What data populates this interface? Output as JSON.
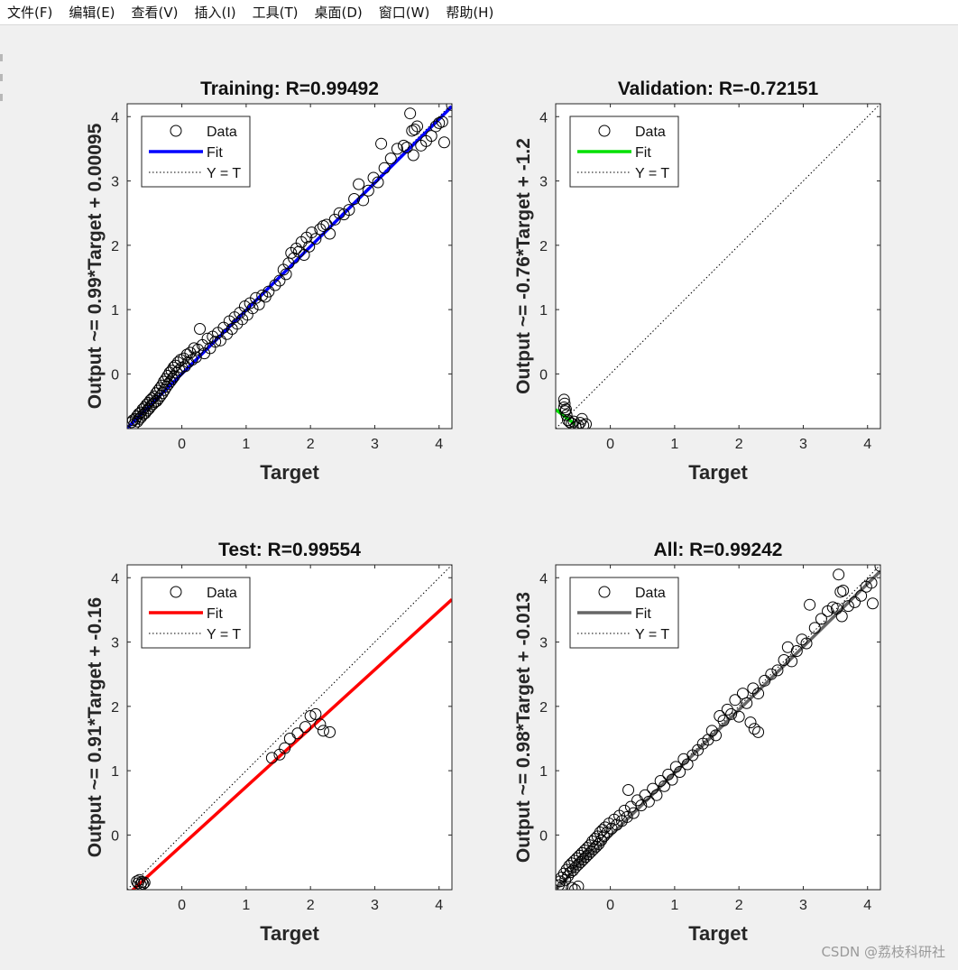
{
  "menu": {
    "items": [
      "文件(F)",
      "编辑(E)",
      "查看(V)",
      "插入(I)",
      "工具(T)",
      "桌面(D)",
      "窗口(W)",
      "帮助(H)"
    ]
  },
  "watermark": "CSDN @荔枝科研社",
  "colors": {
    "training_fit": "#0000ff",
    "validation_fit": "#00e000",
    "test_fit": "#ff0000",
    "all_fit": "#666666",
    "marker": "#000000",
    "identity": "#000000"
  },
  "chart_data": [
    {
      "id": "training",
      "type": "scatter",
      "title": "Training: R=0.99492",
      "xlabel": "Target",
      "ylabel": "Output ~= 0.99*Target + 0.00095",
      "xlim": [
        -0.85,
        4.2
      ],
      "ylim": [
        -0.85,
        4.2
      ],
      "xticks": [
        0,
        1,
        2,
        3,
        4
      ],
      "yticks": [
        0,
        1,
        2,
        3,
        4
      ],
      "legend": {
        "position": "top-left",
        "entries": [
          "Data",
          "Fit",
          "Y = T"
        ]
      },
      "fit": {
        "slope": 0.99,
        "intercept": 0.00095,
        "color": "#0000ff"
      },
      "points": [
        [
          -0.78,
          -0.75
        ],
        [
          -0.76,
          -0.72
        ],
        [
          -0.74,
          -0.78
        ],
        [
          -0.72,
          -0.7
        ],
        [
          -0.7,
          -0.66
        ],
        [
          -0.69,
          -0.74
        ],
        [
          -0.67,
          -0.62
        ],
        [
          -0.66,
          -0.7
        ],
        [
          -0.64,
          -0.6
        ],
        [
          -0.63,
          -0.67
        ],
        [
          -0.61,
          -0.55
        ],
        [
          -0.6,
          -0.63
        ],
        [
          -0.58,
          -0.52
        ],
        [
          -0.57,
          -0.61
        ],
        [
          -0.55,
          -0.48
        ],
        [
          -0.54,
          -0.57
        ],
        [
          -0.52,
          -0.45
        ],
        [
          -0.51,
          -0.54
        ],
        [
          -0.49,
          -0.41
        ],
        [
          -0.48,
          -0.5
        ],
        [
          -0.46,
          -0.38
        ],
        [
          -0.45,
          -0.47
        ],
        [
          -0.43,
          -0.35
        ],
        [
          -0.42,
          -0.44
        ],
        [
          -0.4,
          -0.3
        ],
        [
          -0.39,
          -0.42
        ],
        [
          -0.37,
          -0.26
        ],
        [
          -0.36,
          -0.38
        ],
        [
          -0.34,
          -0.22
        ],
        [
          -0.33,
          -0.34
        ],
        [
          -0.31,
          -0.18
        ],
        [
          -0.3,
          -0.3
        ],
        [
          -0.28,
          -0.12
        ],
        [
          -0.27,
          -0.25
        ],
        [
          -0.25,
          -0.08
        ],
        [
          -0.24,
          -0.2
        ],
        [
          -0.22,
          -0.03
        ],
        [
          -0.21,
          -0.16
        ],
        [
          -0.19,
          0.02
        ],
        [
          -0.18,
          -0.12
        ],
        [
          -0.16,
          0.05
        ],
        [
          -0.15,
          -0.08
        ],
        [
          -0.13,
          0.1
        ],
        [
          -0.12,
          -0.04
        ],
        [
          -0.1,
          0.13
        ],
        [
          -0.08,
          0.02
        ],
        [
          -0.06,
          0.18
        ],
        [
          -0.04,
          0.06
        ],
        [
          -0.02,
          0.22
        ],
        [
          0.0,
          0.1
        ],
        [
          0.03,
          0.24
        ],
        [
          0.05,
          0.12
        ],
        [
          0.08,
          0.3
        ],
        [
          0.1,
          0.18
        ],
        [
          0.13,
          0.33
        ],
        [
          0.16,
          0.22
        ],
        [
          0.19,
          0.4
        ],
        [
          0.22,
          0.26
        ],
        [
          0.25,
          0.38
        ],
        [
          0.28,
          0.7
        ],
        [
          0.32,
          0.45
        ],
        [
          0.35,
          0.32
        ],
        [
          0.4,
          0.55
        ],
        [
          0.44,
          0.4
        ],
        [
          0.48,
          0.58
        ],
        [
          0.52,
          0.5
        ],
        [
          0.56,
          0.64
        ],
        [
          0.6,
          0.52
        ],
        [
          0.65,
          0.72
        ],
        [
          0.7,
          0.62
        ],
        [
          0.74,
          0.82
        ],
        [
          0.78,
          0.7
        ],
        [
          0.82,
          0.88
        ],
        [
          0.86,
          0.78
        ],
        [
          0.9,
          0.95
        ],
        [
          0.94,
          0.85
        ],
        [
          0.98,
          1.05
        ],
        [
          1.02,
          0.92
        ],
        [
          1.06,
          1.1
        ],
        [
          1.1,
          1.02
        ],
        [
          1.15,
          1.18
        ],
        [
          1.2,
          1.08
        ],
        [
          1.25,
          1.22
        ],
        [
          1.3,
          1.2
        ],
        [
          1.35,
          1.28
        ],
        [
          1.45,
          1.38
        ],
        [
          1.52,
          1.45
        ],
        [
          1.58,
          1.62
        ],
        [
          1.62,
          1.55
        ],
        [
          1.66,
          1.72
        ],
        [
          1.7,
          1.88
        ],
        [
          1.74,
          1.8
        ],
        [
          1.78,
          1.95
        ],
        [
          1.82,
          1.9
        ],
        [
          1.86,
          2.05
        ],
        [
          1.9,
          1.85
        ],
        [
          1.94,
          2.12
        ],
        [
          1.98,
          1.98
        ],
        [
          2.02,
          2.2
        ],
        [
          2.08,
          2.1
        ],
        [
          2.15,
          2.25
        ],
        [
          2.2,
          2.3
        ],
        [
          2.25,
          2.32
        ],
        [
          2.3,
          2.18
        ],
        [
          2.38,
          2.4
        ],
        [
          2.45,
          2.5
        ],
        [
          2.52,
          2.48
        ],
        [
          2.6,
          2.55
        ],
        [
          2.68,
          2.72
        ],
        [
          2.75,
          2.95
        ],
        [
          2.82,
          2.7
        ],
        [
          2.9,
          2.85
        ],
        [
          2.98,
          3.05
        ],
        [
          3.05,
          2.98
        ],
        [
          3.1,
          3.58
        ],
        [
          3.15,
          3.2
        ],
        [
          3.25,
          3.35
        ],
        [
          3.35,
          3.5
        ],
        [
          3.45,
          3.55
        ],
        [
          3.5,
          3.52
        ],
        [
          3.55,
          4.05
        ],
        [
          3.58,
          3.78
        ],
        [
          3.6,
          3.4
        ],
        [
          3.62,
          3.8
        ],
        [
          3.66,
          3.85
        ],
        [
          3.72,
          3.55
        ],
        [
          3.8,
          3.62
        ],
        [
          3.88,
          3.7
        ],
        [
          3.95,
          3.85
        ],
        [
          4.05,
          3.92
        ],
        [
          4.08,
          3.6
        ],
        [
          4.0,
          3.9
        ],
        [
          4.2,
          4.18
        ]
      ]
    },
    {
      "id": "validation",
      "type": "scatter",
      "title": "Validation: R=-0.72151",
      "xlabel": "Target",
      "ylabel": "Output ~= -0.76*Target + -1.2",
      "xlim": [
        -0.85,
        4.2
      ],
      "ylim": [
        -0.85,
        4.2
      ],
      "xticks": [
        0,
        1,
        2,
        3,
        4
      ],
      "yticks": [
        0,
        1,
        2,
        3,
        4
      ],
      "legend": {
        "position": "top-left",
        "entries": [
          "Data",
          "Fit",
          "Y = T"
        ]
      },
      "fit": {
        "slope": -0.76,
        "intercept": -1.2,
        "color": "#00e000",
        "xrange": [
          -0.85,
          -0.55
        ]
      },
      "points": [
        [
          -0.72,
          -0.4
        ],
        [
          -0.71,
          -0.46
        ],
        [
          -0.72,
          -0.52
        ],
        [
          -0.7,
          -0.58
        ],
        [
          -0.69,
          -0.55
        ],
        [
          -0.68,
          -0.64
        ],
        [
          -0.66,
          -0.72
        ],
        [
          -0.63,
          -0.75
        ],
        [
          -0.6,
          -0.77
        ],
        [
          -0.57,
          -0.74
        ],
        [
          -0.54,
          -0.82
        ],
        [
          -0.5,
          -0.8
        ],
        [
          -0.47,
          -0.76
        ],
        [
          -0.44,
          -0.7
        ],
        [
          -0.42,
          -0.8
        ],
        [
          -0.38,
          -0.78
        ]
      ]
    },
    {
      "id": "test",
      "type": "scatter",
      "title": "Test: R=0.99554",
      "xlabel": "Target",
      "ylabel": "Output ~= 0.91*Target + -0.16",
      "xlim": [
        -0.85,
        4.2
      ],
      "ylim": [
        -0.85,
        4.2
      ],
      "xticks": [
        0,
        1,
        2,
        3,
        4
      ],
      "yticks": [
        0,
        1,
        2,
        3,
        4
      ],
      "legend": {
        "position": "top-left",
        "entries": [
          "Data",
          "Fit",
          "Y = T"
        ]
      },
      "fit": {
        "slope": 0.91,
        "intercept": -0.16,
        "color": "#ff0000"
      },
      "points": [
        [
          -0.7,
          -0.72
        ],
        [
          -0.68,
          -0.75
        ],
        [
          -0.66,
          -0.7
        ],
        [
          -0.64,
          -0.77
        ],
        [
          -0.62,
          -0.73
        ],
        [
          -0.6,
          -0.76
        ],
        [
          -0.58,
          -0.74
        ],
        [
          1.4,
          1.2
        ],
        [
          1.52,
          1.25
        ],
        [
          1.6,
          1.35
        ],
        [
          1.68,
          1.5
        ],
        [
          1.8,
          1.58
        ],
        [
          1.92,
          1.68
        ],
        [
          2.0,
          1.85
        ],
        [
          2.08,
          1.88
        ],
        [
          2.15,
          1.72
        ],
        [
          2.2,
          1.62
        ],
        [
          2.3,
          1.6
        ]
      ]
    },
    {
      "id": "all",
      "type": "scatter",
      "title": "All: R=0.99242",
      "xlabel": "Target",
      "ylabel": "Output ~= 0.98*Target + -0.013",
      "xlim": [
        -0.85,
        4.2
      ],
      "ylim": [
        -0.85,
        4.2
      ],
      "xticks": [
        0,
        1,
        2,
        3,
        4
      ],
      "yticks": [
        0,
        1,
        2,
        3,
        4
      ],
      "legend": {
        "position": "top-left",
        "entries": [
          "Data",
          "Fit",
          "Y = T"
        ]
      },
      "fit": {
        "slope": 0.98,
        "intercept": -0.013,
        "color": "#666666"
      },
      "points": [
        [
          -0.8,
          -0.78
        ],
        [
          -0.78,
          -0.72
        ],
        [
          -0.76,
          -0.66
        ],
        [
          -0.74,
          -0.8
        ],
        [
          -0.72,
          -0.6
        ],
        [
          -0.7,
          -0.7
        ],
        [
          -0.68,
          -0.54
        ],
        [
          -0.66,
          -0.64
        ],
        [
          -0.64,
          -0.48
        ],
        [
          -0.62,
          -0.58
        ],
        [
          -0.6,
          -0.44
        ],
        [
          -0.58,
          -0.55
        ],
        [
          -0.56,
          -0.4
        ],
        [
          -0.54,
          -0.5
        ],
        [
          -0.52,
          -0.36
        ],
        [
          -0.5,
          -0.46
        ],
        [
          -0.48,
          -0.32
        ],
        [
          -0.46,
          -0.42
        ],
        [
          -0.44,
          -0.28
        ],
        [
          -0.42,
          -0.38
        ],
        [
          -0.4,
          -0.24
        ],
        [
          -0.38,
          -0.34
        ],
        [
          -0.36,
          -0.2
        ],
        [
          -0.34,
          -0.3
        ],
        [
          -0.32,
          -0.16
        ],
        [
          -0.3,
          -0.26
        ],
        [
          -0.28,
          -0.1
        ],
        [
          -0.26,
          -0.22
        ],
        [
          -0.24,
          -0.06
        ],
        [
          -0.22,
          -0.18
        ],
        [
          -0.2,
          -0.02
        ],
        [
          -0.18,
          -0.14
        ],
        [
          -0.16,
          0.04
        ],
        [
          -0.14,
          -0.08
        ],
        [
          -0.12,
          0.08
        ],
        [
          -0.1,
          -0.02
        ],
        [
          -0.08,
          0.12
        ],
        [
          -0.05,
          0.04
        ],
        [
          -0.02,
          0.18
        ],
        [
          0.02,
          0.1
        ],
        [
          0.06,
          0.24
        ],
        [
          0.1,
          0.16
        ],
        [
          0.14,
          0.3
        ],
        [
          0.18,
          0.22
        ],
        [
          0.22,
          0.38
        ],
        [
          0.26,
          0.28
        ],
        [
          0.28,
          0.7
        ],
        [
          0.32,
          0.44
        ],
        [
          0.36,
          0.34
        ],
        [
          0.42,
          0.54
        ],
        [
          0.48,
          0.46
        ],
        [
          0.54,
          0.62
        ],
        [
          0.6,
          0.52
        ],
        [
          0.66,
          0.72
        ],
        [
          0.72,
          0.62
        ],
        [
          0.78,
          0.84
        ],
        [
          0.84,
          0.76
        ],
        [
          0.9,
          0.94
        ],
        [
          0.96,
          0.86
        ],
        [
          1.02,
          1.06
        ],
        [
          1.08,
          0.98
        ],
        [
          1.14,
          1.18
        ],
        [
          1.2,
          1.1
        ],
        [
          1.28,
          1.24
        ],
        [
          1.36,
          1.32
        ],
        [
          1.44,
          1.42
        ],
        [
          1.52,
          1.48
        ],
        [
          1.58,
          1.62
        ],
        [
          1.64,
          1.55
        ],
        [
          1.7,
          1.85
        ],
        [
          1.76,
          1.78
        ],
        [
          1.82,
          1.95
        ],
        [
          1.88,
          1.88
        ],
        [
          1.94,
          2.1
        ],
        [
          2.0,
          1.84
        ],
        [
          2.06,
          2.2
        ],
        [
          2.12,
          2.05
        ],
        [
          2.18,
          1.75
        ],
        [
          2.24,
          1.65
        ],
        [
          2.3,
          1.6
        ],
        [
          2.22,
          2.28
        ],
        [
          2.3,
          2.2
        ],
        [
          2.4,
          2.4
        ],
        [
          2.5,
          2.5
        ],
        [
          2.6,
          2.56
        ],
        [
          2.7,
          2.72
        ],
        [
          2.76,
          2.92
        ],
        [
          2.82,
          2.7
        ],
        [
          2.9,
          2.86
        ],
        [
          2.98,
          3.04
        ],
        [
          3.05,
          2.98
        ],
        [
          3.1,
          3.58
        ],
        [
          3.18,
          3.22
        ],
        [
          3.28,
          3.36
        ],
        [
          3.38,
          3.48
        ],
        [
          3.46,
          3.54
        ],
        [
          3.52,
          3.52
        ],
        [
          3.55,
          4.05
        ],
        [
          3.58,
          3.78
        ],
        [
          3.6,
          3.4
        ],
        [
          3.62,
          3.8
        ],
        [
          3.7,
          3.56
        ],
        [
          3.8,
          3.62
        ],
        [
          3.9,
          3.72
        ],
        [
          3.98,
          3.86
        ],
        [
          4.06,
          3.92
        ],
        [
          4.08,
          3.6
        ],
        [
          4.2,
          4.18
        ],
        [
          -0.6,
          -0.82
        ],
        [
          -0.55,
          -0.85
        ],
        [
          -0.5,
          -0.8
        ]
      ]
    }
  ]
}
